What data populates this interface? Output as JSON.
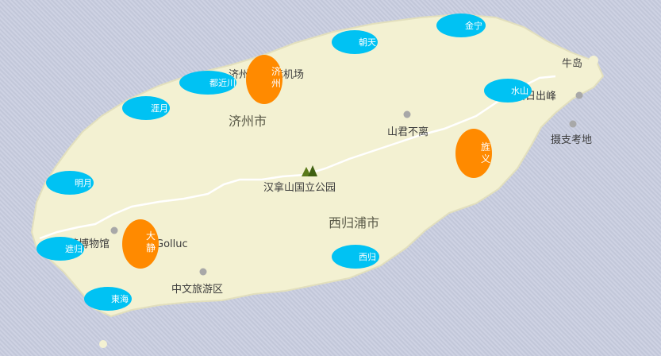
{
  "map": {
    "cities": [
      "济州市",
      "西归浦市"
    ],
    "places": [
      "济州",
      "际机场",
      "牛岛",
      "城山日出峰",
      "山君不离",
      "摄支考地",
      "汉拿山国立公园",
      "茶博物馆",
      "Golluc",
      "中文旅游区"
    ],
    "colors": {
      "sea": "#c8cde0",
      "island": "#f3f1d2",
      "road": "#ffffff",
      "marker_blue": "#00c2f3",
      "marker_orange": "#ff8a00"
    }
  },
  "markers": {
    "blue": [
      "金宁",
      "朝天",
      "都近川",
      "涯月",
      "水山",
      "明月",
      "遮归",
      "西归",
      "東海"
    ],
    "orange": [
      "济州",
      "旌义",
      "大静"
    ]
  }
}
